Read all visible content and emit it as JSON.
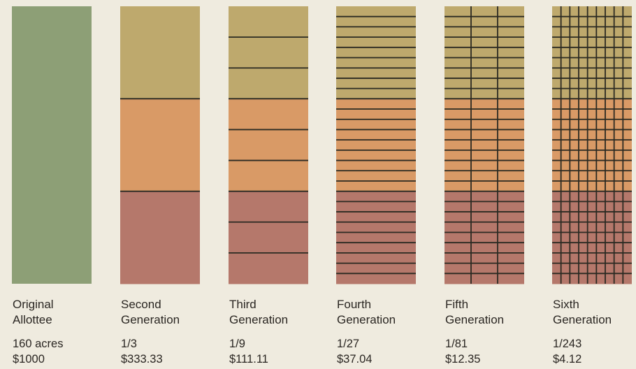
{
  "colors": {
    "background": "#efebdf",
    "original_parcel": "#8d9f76",
    "top_band": "#bea96d",
    "middle_band": "#d99a66",
    "bottom_band": "#b5786b",
    "division_lines": "#2b2a22"
  },
  "generations": [
    {
      "label_line1": "Original",
      "label_line2": "Allottee",
      "share": "160 acres",
      "value": "$1000",
      "divisions": 1,
      "vertical_divisions": 1
    },
    {
      "label_line1": "Second",
      "label_line2": "Generation",
      "share": "1/3",
      "value": "$333.33",
      "divisions": 3,
      "vertical_divisions": 1
    },
    {
      "label_line1": "Third",
      "label_line2": "Generation",
      "share": "1/9",
      "value": "$111.11",
      "divisions": 9,
      "vertical_divisions": 1
    },
    {
      "label_line1": "Fourth",
      "label_line2": "Generation",
      "share": "1/27",
      "value": "$37.04",
      "divisions": 27,
      "vertical_divisions": 1
    },
    {
      "label_line1": "Fifth",
      "label_line2": "Generation",
      "share": "1/81",
      "value": "$12.35",
      "divisions": 27,
      "vertical_divisions": 3
    },
    {
      "label_line1": "Sixth",
      "label_line2": "Generation",
      "share": "1/243",
      "value": "$4.12",
      "divisions": 27,
      "vertical_divisions": 9
    }
  ]
}
